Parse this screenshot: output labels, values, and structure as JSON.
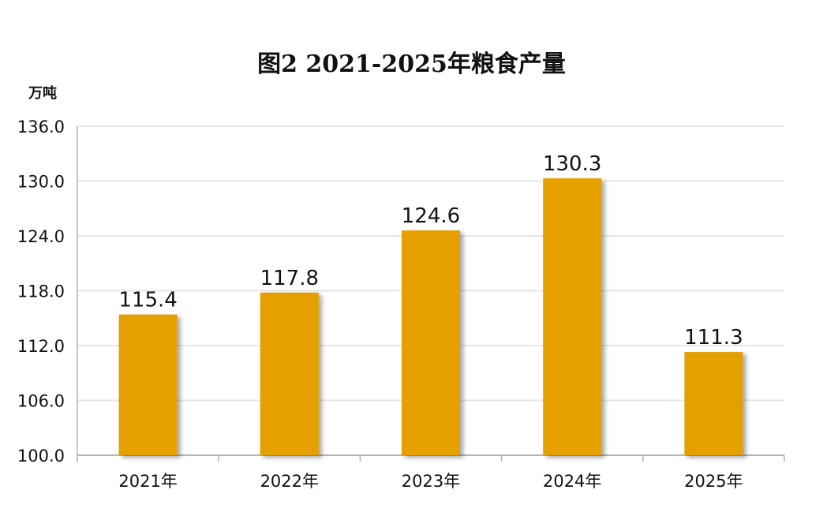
{
  "chart_data": {
    "type": "bar",
    "title": "图2  2021-2025年粮食产量",
    "ylabel": "万吨",
    "xlabel": "",
    "categories": [
      "2021年",
      "2022年",
      "2023年",
      "2024年",
      "2025年"
    ],
    "values": [
      115.4,
      117.8,
      124.6,
      130.3,
      111.3
    ],
    "value_labels": [
      "115.4",
      "117.8",
      "124.6",
      "130.3",
      "111.3"
    ],
    "ylim": [
      100.0,
      136.0
    ],
    "yticks": [
      "100.0",
      "106.0",
      "112.0",
      "118.0",
      "124.0",
      "130.0",
      "136.0"
    ],
    "grid": true,
    "bar_color": "#E5A000",
    "grid_color": "#e6e6e6",
    "axis_color": "#b3b3b3"
  }
}
